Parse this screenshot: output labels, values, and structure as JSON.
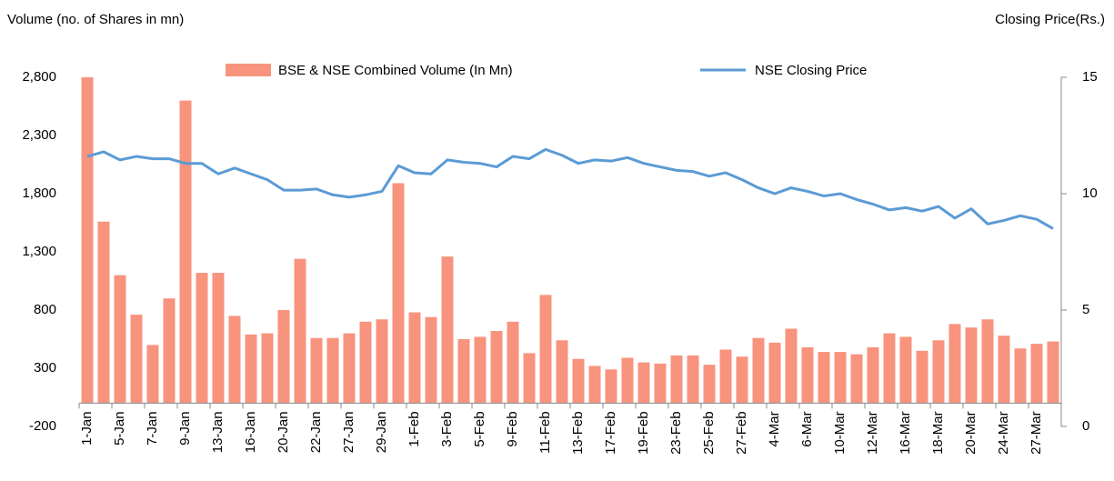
{
  "chart_data": {
    "type": "bar_line",
    "y_label": "Volume (no. of Shares in mn)",
    "y2_label": "Closing Price(Rs.)",
    "categories": [
      "1-Jan",
      null,
      "5-Jan",
      null,
      "7-Jan",
      null,
      "9-Jan",
      null,
      "13-Jan",
      null,
      "16-Jan",
      null,
      "20-Jan",
      null,
      "22-Jan",
      null,
      "27-Jan",
      null,
      "29-Jan",
      null,
      "1-Feb",
      null,
      "3-Feb",
      null,
      "5-Feb",
      null,
      "9-Feb",
      null,
      "11-Feb",
      null,
      "13-Feb",
      null,
      "17-Feb",
      null,
      "19-Feb",
      null,
      "23-Feb",
      null,
      "25-Feb",
      null,
      "27-Feb",
      null,
      "4-Mar",
      null,
      "6-Mar",
      null,
      "10-Mar",
      null,
      "12-Mar",
      null,
      "16-Mar",
      null,
      "18-Mar",
      null,
      "20-Mar",
      null,
      "24-Mar",
      null,
      "27-Mar",
      null
    ],
    "series": [
      {
        "name": "BSE & NSE Combined Volume (In Mn)",
        "color": "#f8937e",
        "type": "bar",
        "values": [
          2800,
          1560,
          1100,
          760,
          500,
          900,
          2600,
          1120,
          1120,
          750,
          590,
          600,
          800,
          1240,
          560,
          560,
          600,
          700,
          720,
          1890,
          780,
          740,
          1260,
          550,
          570,
          620,
          700,
          430,
          930,
          540,
          380,
          320,
          290,
          390,
          350,
          340,
          410,
          410,
          330,
          460,
          400,
          560,
          520,
          640,
          480,
          440,
          440,
          420,
          480,
          600,
          570,
          450,
          540,
          680,
          650,
          720,
          580,
          470,
          510,
          530
        ]
      },
      {
        "name": "NSE Closing Price",
        "color": "#5b9bd5",
        "type": "line",
        "axis": "y2",
        "values": [
          11.6,
          11.8,
          11.45,
          11.6,
          11.5,
          11.5,
          11.3,
          11.3,
          10.85,
          11.1,
          10.85,
          10.6,
          10.15,
          10.15,
          10.2,
          9.95,
          9.85,
          9.95,
          10.1,
          11.2,
          10.9,
          10.85,
          11.45,
          11.35,
          11.3,
          11.15,
          11.6,
          11.5,
          11.9,
          11.65,
          11.3,
          11.45,
          11.4,
          11.55,
          11.3,
          11.15,
          11.0,
          10.95,
          10.75,
          10.9,
          10.6,
          10.25,
          10.0,
          10.25,
          10.1,
          9.9,
          10.0,
          9.75,
          9.55,
          9.3,
          9.4,
          9.25,
          9.45,
          8.95,
          9.35,
          8.7,
          8.85,
          9.05,
          8.9,
          8.5
        ]
      }
    ],
    "ylim": [
      -200,
      2800
    ],
    "yticks": [
      -200,
      300,
      800,
      {
        "value": 1300,
        "label": "1,300"
      },
      {
        "value": 1800,
        "label": "1,800"
      },
      {
        "value": 2300,
        "label": "2,300"
      },
      {
        "value": 2800,
        "label": "2,800"
      }
    ],
    "y2lim": [
      0,
      15
    ],
    "y2ticks": [
      0,
      5,
      10,
      15
    ],
    "legend": "top"
  }
}
